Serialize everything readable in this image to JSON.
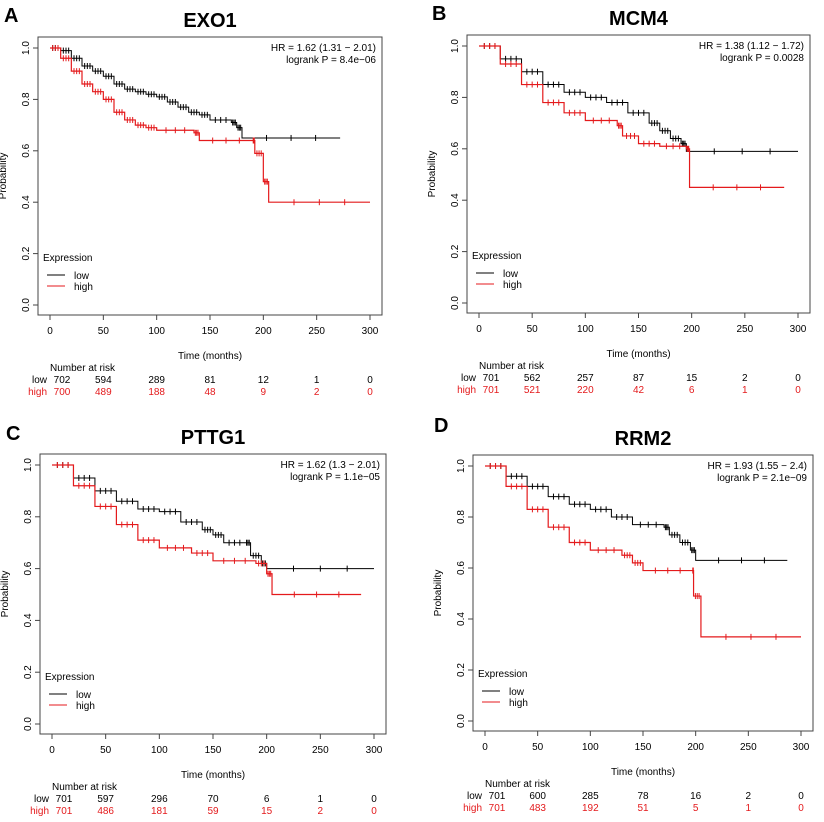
{
  "chart_data": [
    {
      "type": "line",
      "panel": "A",
      "title": "EXO1",
      "stats": {
        "hr": "HR = 1.62 (1.31 − 2.01)",
        "logrank": "logrank P = 8.4e−06"
      },
      "xlabel": "Time (months)",
      "ylabel": "Probability",
      "xlim": [
        0,
        300
      ],
      "ylim": [
        0,
        1
      ],
      "xticks": [
        "0",
        "50",
        "100",
        "150",
        "200",
        "250",
        "300"
      ],
      "yticks": [
        "0.0",
        "0.2",
        "0.4",
        "0.6",
        "0.8",
        "1.0"
      ],
      "legend": {
        "title": "Expression",
        "entries": [
          "low",
          "high"
        ],
        "placement": "bottom-left"
      },
      "series": [
        {
          "name": "low",
          "color": "#000000",
          "points": [
            [
              0,
              1
            ],
            [
              10,
              0.99
            ],
            [
              20,
              0.96
            ],
            [
              30,
              0.93
            ],
            [
              40,
              0.91
            ],
            [
              50,
              0.89
            ],
            [
              60,
              0.86
            ],
            [
              70,
              0.84
            ],
            [
              80,
              0.83
            ],
            [
              90,
              0.82
            ],
            [
              100,
              0.81
            ],
            [
              110,
              0.79
            ],
            [
              120,
              0.77
            ],
            [
              130,
              0.75
            ],
            [
              140,
              0.74
            ],
            [
              150,
              0.72
            ],
            [
              170,
              0.71
            ],
            [
              175,
              0.69
            ],
            [
              180,
              0.65
            ],
            [
              272,
              0.65
            ]
          ]
        },
        {
          "name": "high",
          "color": "#e41a1c",
          "points": [
            [
              0,
              1
            ],
            [
              10,
              0.96
            ],
            [
              20,
              0.91
            ],
            [
              30,
              0.86
            ],
            [
              40,
              0.83
            ],
            [
              50,
              0.8
            ],
            [
              60,
              0.75
            ],
            [
              70,
              0.72
            ],
            [
              80,
              0.7
            ],
            [
              90,
              0.69
            ],
            [
              100,
              0.68
            ],
            [
              135,
              0.67
            ],
            [
              140,
              0.64
            ],
            [
              190,
              0.64
            ],
            [
              192,
              0.59
            ],
            [
              200,
              0.48
            ],
            [
              205,
              0.4
            ],
            [
              300,
              0.4
            ]
          ]
        }
      ],
      "risk_table": {
        "heading": "Number at risk",
        "low": [
          "702",
          "594",
          "289",
          "81",
          "12",
          "1",
          "0"
        ],
        "high": [
          "700",
          "489",
          "188",
          "48",
          "9",
          "2",
          "0"
        ]
      }
    },
    {
      "type": "line",
      "panel": "B",
      "title": "MCM4",
      "stats": {
        "hr": "HR = 1.38 (1.12 − 1.72)",
        "logrank": "logrank P = 0.0028"
      },
      "xlabel": "Time (months)",
      "ylabel": "Probability",
      "xlim": [
        0,
        300
      ],
      "ylim": [
        0,
        1
      ],
      "xticks": [
        "0",
        "50",
        "100",
        "150",
        "200",
        "250",
        "300"
      ],
      "yticks": [
        "0.0",
        "0.2",
        "0.4",
        "0.6",
        "0.8",
        "1.0"
      ],
      "legend": {
        "title": "Expression",
        "entries": [
          "low",
          "high"
        ],
        "placement": "bottom-left"
      },
      "series": [
        {
          "name": "low",
          "color": "#000000",
          "points": [
            [
              0,
              1
            ],
            [
              20,
              0.95
            ],
            [
              40,
              0.9
            ],
            [
              60,
              0.85
            ],
            [
              80,
              0.82
            ],
            [
              100,
              0.8
            ],
            [
              120,
              0.78
            ],
            [
              140,
              0.74
            ],
            [
              160,
              0.7
            ],
            [
              170,
              0.67
            ],
            [
              180,
              0.64
            ],
            [
              190,
              0.62
            ],
            [
              195,
              0.59
            ],
            [
              300,
              0.59
            ]
          ]
        },
        {
          "name": "high",
          "color": "#e41a1c",
          "points": [
            [
              0,
              1
            ],
            [
              20,
              0.93
            ],
            [
              40,
              0.85
            ],
            [
              60,
              0.78
            ],
            [
              80,
              0.74
            ],
            [
              100,
              0.71
            ],
            [
              130,
              0.69
            ],
            [
              135,
              0.65
            ],
            [
              150,
              0.62
            ],
            [
              170,
              0.61
            ],
            [
              195,
              0.6
            ],
            [
              198,
              0.45
            ],
            [
              287,
              0.45
            ]
          ]
        }
      ],
      "risk_table": {
        "heading": "Number at risk",
        "low": [
          "701",
          "562",
          "257",
          "87",
          "15",
          "2",
          "0"
        ],
        "high": [
          "701",
          "521",
          "220",
          "42",
          "6",
          "1",
          "0"
        ]
      }
    },
    {
      "type": "line",
      "panel": "C",
      "title": "PTTG1",
      "stats": {
        "hr": "HR = 1.62 (1.3 − 2.01)",
        "logrank": "logrank P = 1.1e−05"
      },
      "xlabel": "Time (months)",
      "ylabel": "Probability",
      "xlim": [
        0,
        300
      ],
      "ylim": [
        0,
        1
      ],
      "xticks": [
        "0",
        "50",
        "100",
        "150",
        "200",
        "250",
        "300"
      ],
      "yticks": [
        "0.0",
        "0.2",
        "0.4",
        "0.6",
        "0.8",
        "1.0"
      ],
      "legend": {
        "title": "Expression",
        "entries": [
          "low",
          "high"
        ],
        "placement": "bottom-left"
      },
      "series": [
        {
          "name": "low",
          "color": "#000000",
          "points": [
            [
              0,
              1
            ],
            [
              20,
              0.95
            ],
            [
              40,
              0.9
            ],
            [
              60,
              0.86
            ],
            [
              80,
              0.83
            ],
            [
              100,
              0.82
            ],
            [
              120,
              0.78
            ],
            [
              140,
              0.75
            ],
            [
              150,
              0.73
            ],
            [
              160,
              0.7
            ],
            [
              180,
              0.7
            ],
            [
              185,
              0.65
            ],
            [
              195,
              0.62
            ],
            [
              200,
              0.6
            ],
            [
              300,
              0.6
            ]
          ]
        },
        {
          "name": "high",
          "color": "#e41a1c",
          "points": [
            [
              0,
              1
            ],
            [
              20,
              0.92
            ],
            [
              40,
              0.84
            ],
            [
              60,
              0.77
            ],
            [
              80,
              0.71
            ],
            [
              100,
              0.68
            ],
            [
              130,
              0.66
            ],
            [
              150,
              0.63
            ],
            [
              190,
              0.62
            ],
            [
              200,
              0.58
            ],
            [
              205,
              0.5
            ],
            [
              288,
              0.5
            ]
          ]
        }
      ],
      "risk_table": {
        "heading": "Number at risk",
        "low": [
          "701",
          "597",
          "296",
          "70",
          "6",
          "1",
          "0"
        ],
        "high": [
          "701",
          "486",
          "181",
          "59",
          "15",
          "2",
          "0"
        ]
      }
    },
    {
      "type": "line",
      "panel": "D",
      "title": "RRM2",
      "stats": {
        "hr": "HR = 1.93 (1.55 − 2.4)",
        "logrank": "logrank P = 2.1e−09"
      },
      "xlabel": "Time (months)",
      "ylabel": "Probability",
      "xlim": [
        0,
        300
      ],
      "ylim": [
        0,
        1
      ],
      "xticks": [
        "0",
        "50",
        "100",
        "150",
        "200",
        "250",
        "300"
      ],
      "yticks": [
        "0.0",
        "0.2",
        "0.4",
        "0.6",
        "0.8",
        "1.0"
      ],
      "legend": {
        "title": "Expression",
        "entries": [
          "low",
          "high"
        ],
        "placement": "bottom-left"
      },
      "series": [
        {
          "name": "low",
          "color": "#000000",
          "points": [
            [
              0,
              1
            ],
            [
              20,
              0.96
            ],
            [
              40,
              0.92
            ],
            [
              60,
              0.88
            ],
            [
              80,
              0.85
            ],
            [
              100,
              0.83
            ],
            [
              120,
              0.8
            ],
            [
              140,
              0.77
            ],
            [
              170,
              0.76
            ],
            [
              175,
              0.73
            ],
            [
              185,
              0.7
            ],
            [
              195,
              0.67
            ],
            [
              200,
              0.63
            ],
            [
              287,
              0.63
            ]
          ]
        },
        {
          "name": "high",
          "color": "#e41a1c",
          "points": [
            [
              0,
              1
            ],
            [
              20,
              0.92
            ],
            [
              40,
              0.83
            ],
            [
              60,
              0.76
            ],
            [
              80,
              0.7
            ],
            [
              100,
              0.67
            ],
            [
              130,
              0.65
            ],
            [
              140,
              0.62
            ],
            [
              150,
              0.59
            ],
            [
              197,
              0.59
            ],
            [
              198,
              0.49
            ],
            [
              205,
              0.33
            ],
            [
              300,
              0.33
            ]
          ]
        }
      ],
      "risk_table": {
        "heading": "Number at risk",
        "low": [
          "701",
          "600",
          "285",
          "78",
          "16",
          "2",
          "0"
        ],
        "high": [
          "701",
          "483",
          "192",
          "51",
          "5",
          "1",
          "0"
        ]
      }
    }
  ]
}
